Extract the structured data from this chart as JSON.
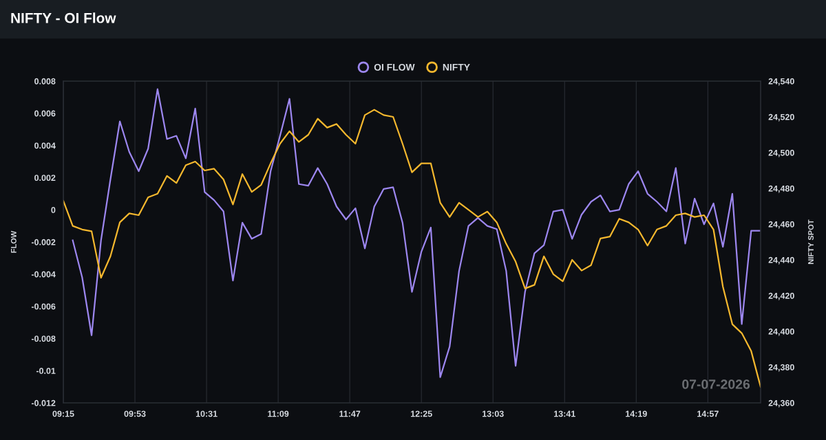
{
  "chart_data": {
    "type": "line",
    "title": "NIFTY - OI Flow",
    "ylabel": "FLOW",
    "y2label": "NIFTY SPOT",
    "x": [
      9.25,
      9.3333,
      9.4167,
      9.5,
      9.5833,
      9.6667,
      9.75,
      9.8333,
      9.9167,
      10,
      10.0833,
      10.1667,
      10.25,
      10.3333,
      10.4167,
      10.5,
      10.5833,
      10.6667,
      10.75,
      10.8333,
      10.9167,
      11,
      11.0833,
      11.1667,
      11.25,
      11.3333,
      11.4167,
      11.5,
      11.5833,
      11.6667,
      11.75,
      11.8333,
      11.9167,
      12,
      12.0833,
      12.1667,
      12.25,
      12.3333,
      12.4167,
      12.5,
      12.5833,
      12.6667,
      12.75,
      12.8333,
      12.9167,
      13,
      13.0833,
      13.1667,
      13.25,
      13.3333,
      13.4167,
      13.5,
      13.5833,
      13.6667,
      13.75,
      13.8333,
      13.9167,
      14,
      14.0833,
      14.1667,
      14.25,
      14.3333,
      14.4167,
      14.5,
      14.5833,
      14.6667,
      14.75,
      14.8333,
      14.9167,
      15,
      15.0833,
      15.1667,
      15.25,
      15.3333,
      15.4167
    ],
    "series": [
      {
        "name": "OI FLOW",
        "color": "#9d87f0",
        "values": [
          null,
          -0.0019,
          -0.0042,
          -0.0078,
          -0.0019,
          0.0019,
          0.0055,
          0.0036,
          0.0024,
          0.0038,
          0.0075,
          0.0044,
          0.0046,
          0.0032,
          0.0063,
          0.0011,
          0.0006,
          -0.0001,
          -0.0044,
          -0.0008,
          -0.0018,
          -0.0015,
          0.0024,
          0.0046,
          0.0069,
          0.0016,
          0.0015,
          0.0026,
          0.0016,
          0.0002,
          -0.0006,
          0.0001,
          -0.0024,
          0.0002,
          0.0013,
          0.0014,
          -0.0008,
          -0.0051,
          -0.0026,
          -0.0011,
          -0.0104,
          -0.0085,
          -0.0038,
          -0.001,
          -0.0005,
          -0.001,
          -0.0012,
          -0.0038,
          -0.0097,
          -0.0051,
          -0.0027,
          -0.0022,
          -0.0001,
          0.0,
          -0.0018,
          -0.0003,
          0.0005,
          0.0009,
          -0.0001,
          0.0,
          0.0016,
          0.0024,
          0.001,
          0.0005,
          -0.0001,
          0.0026,
          -0.0021,
          0.0007,
          -0.0009,
          0.0004,
          -0.0023,
          0.001,
          -0.0071,
          -0.0013,
          -0.0013
        ]
      },
      {
        "name": "NIFTY",
        "color": "#f5b82e",
        "axis": "y2",
        "values": [
          24473,
          24459,
          24457,
          24456,
          24430,
          24442,
          24461,
          24466,
          24465,
          24475,
          24477,
          24487,
          24483,
          24493,
          24495,
          24490,
          24491,
          24485,
          24471,
          24488,
          24478,
          24482,
          24494,
          24505,
          24512,
          24506,
          24510,
          24519,
          24514,
          24516,
          24510,
          24505,
          24521,
          24524,
          24521,
          24520,
          24505,
          24489,
          24494,
          24494,
          24472,
          24464,
          24472,
          24468,
          24464,
          24467,
          24461,
          24449,
          24439,
          24424,
          24426,
          24442,
          24432,
          24428,
          24440,
          24434,
          24437,
          24452,
          24453,
          24463,
          24461,
          24457,
          24448,
          24457,
          24459,
          24465,
          24466,
          24464,
          24465,
          24457,
          24425,
          24404,
          24399,
          24389,
          24369
        ]
      }
    ],
    "xlim": [
      9.25,
      15.4167
    ],
    "xticks": [
      {
        "value": 9.25,
        "label": "09:15"
      },
      {
        "value": 9.8833,
        "label": "09:53"
      },
      {
        "value": 10.5167,
        "label": "10:31"
      },
      {
        "value": 11.15,
        "label": "11:09"
      },
      {
        "value": 11.7833,
        "label": "11:47"
      },
      {
        "value": 12.4167,
        "label": "12:25"
      },
      {
        "value": 13.05,
        "label": "13:03"
      },
      {
        "value": 13.6833,
        "label": "13:41"
      },
      {
        "value": 14.3167,
        "label": "14:19"
      },
      {
        "value": 14.95,
        "label": "14:57"
      }
    ],
    "ylim": [
      -0.012,
      0.008
    ],
    "yticks": [
      -0.012,
      -0.01,
      -0.008,
      -0.006,
      -0.004,
      -0.002,
      0,
      0.002,
      0.004,
      0.006,
      0.008
    ],
    "y2lim": [
      24360,
      24540
    ],
    "y2ticks": [
      {
        "value": 24360,
        "label": "24,360"
      },
      {
        "value": 24380,
        "label": "24,380"
      },
      {
        "value": 24400,
        "label": "24,400"
      },
      {
        "value": 24420,
        "label": "24,420"
      },
      {
        "value": 24440,
        "label": "24,440"
      },
      {
        "value": 24460,
        "label": "24,460"
      },
      {
        "value": 24480,
        "label": "24,480"
      },
      {
        "value": 24500,
        "label": "24,500"
      },
      {
        "value": 24520,
        "label": "24,520"
      },
      {
        "value": 24540,
        "label": "24,540"
      }
    ],
    "grid": "x",
    "legend": "top",
    "annotations": [
      "07-07-2026"
    ]
  }
}
